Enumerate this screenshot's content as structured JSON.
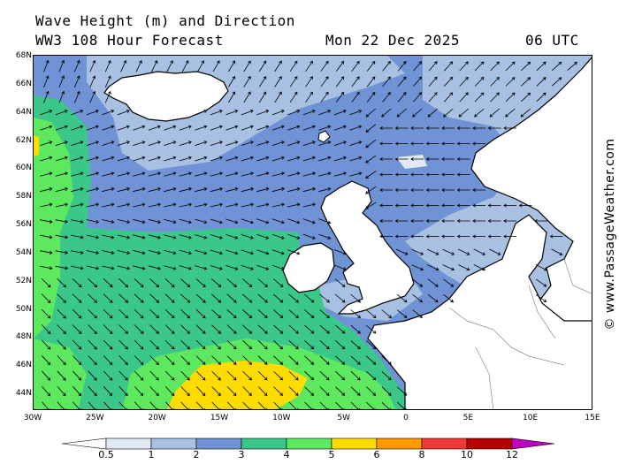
{
  "header": {
    "title": "Wave Height (m) and Direction",
    "model": "WW3 108 Hour Forecast",
    "date": "Mon 22 Dec 2025",
    "time": "06 UTC"
  },
  "map": {
    "region": "North Atlantic / North Sea",
    "lat_labels": [
      "68N",
      "66N",
      "64N",
      "62N",
      "60N",
      "58N",
      "56N",
      "54N",
      "52N",
      "50N",
      "48N",
      "46N",
      "44N"
    ],
    "lon_labels": [
      "30W",
      "25W",
      "20W",
      "15W",
      "10W",
      "5W",
      "0",
      "5E",
      "10E",
      "15E"
    ],
    "ocean_zones": [
      {
        "name": "band-0.5-1",
        "color": "#e2e8f4"
      },
      {
        "name": "band-1-2",
        "color": "#a8c0e2"
      },
      {
        "name": "band-2-3",
        "color": "#6f93d4"
      },
      {
        "name": "band-3-4",
        "color": "#3cc78a"
      },
      {
        "name": "band-4-5",
        "color": "#5ee860"
      },
      {
        "name": "band-5-6",
        "color": "#ffdc00"
      }
    ],
    "land_color": "#ffffff"
  },
  "credit": "© www.PassageWeather.com",
  "legend": {
    "labels": [
      "0.5",
      "1",
      "2",
      "3",
      "4",
      "6",
      "8",
      "10",
      "12"
    ],
    "label_5": "5",
    "colors": [
      "#e2e8f4",
      "#a8c0e2",
      "#6f93d4",
      "#3cc78a",
      "#5ee860",
      "#ffdc00",
      "#ff9a00",
      "#f03838",
      "#b80000",
      "#c000c0"
    ]
  }
}
